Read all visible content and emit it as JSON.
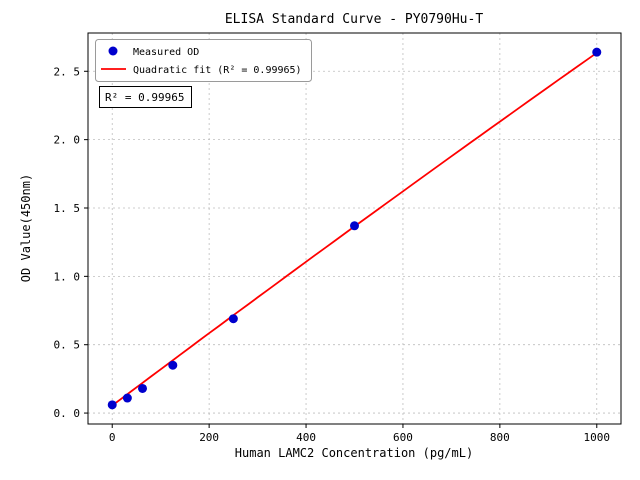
{
  "window": {
    "background": "#ffffff"
  },
  "chart_data": {
    "type": "scatter",
    "title": "ELISA Standard Curve - PY0790Hu-T",
    "xlabel": "Human LAMC2 Concentration (pg/mL)",
    "ylabel": "OD Value(450nm)",
    "xlim": [
      -50,
      1050
    ],
    "ylim": [
      -0.08,
      2.78
    ],
    "xticks": [
      0,
      200,
      400,
      600,
      800,
      1000
    ],
    "xtick_labels": [
      "0",
      "200",
      "400",
      "600",
      "800",
      "1000"
    ],
    "yticks": [
      0,
      0.5,
      1.0,
      1.5,
      2.0,
      2.5
    ],
    "ytick_labels": [
      "0. 0",
      "0. 5",
      "1. 0",
      "1. 5",
      "2. 0",
      "2. 5"
    ],
    "grid": true,
    "legend": {
      "position": "upper left"
    },
    "annotation": "R² = 0.99965",
    "series": [
      {
        "name": "Measured OD",
        "type": "scatter",
        "color": "#0000cd",
        "x": [
          0,
          31.25,
          62.5,
          125,
          250,
          500,
          1000
        ],
        "y": [
          0.06,
          0.11,
          0.18,
          0.35,
          0.69,
          1.37,
          2.64
        ]
      },
      {
        "name": "Quadratic fit (R² = 0.99965)",
        "type": "line",
        "color": "#ff0000",
        "x_range": [
          0,
          1000
        ],
        "fit": {
          "intercept": 0.055,
          "linear": 0.00266,
          "quadratic": -8e-08
        }
      }
    ]
  }
}
